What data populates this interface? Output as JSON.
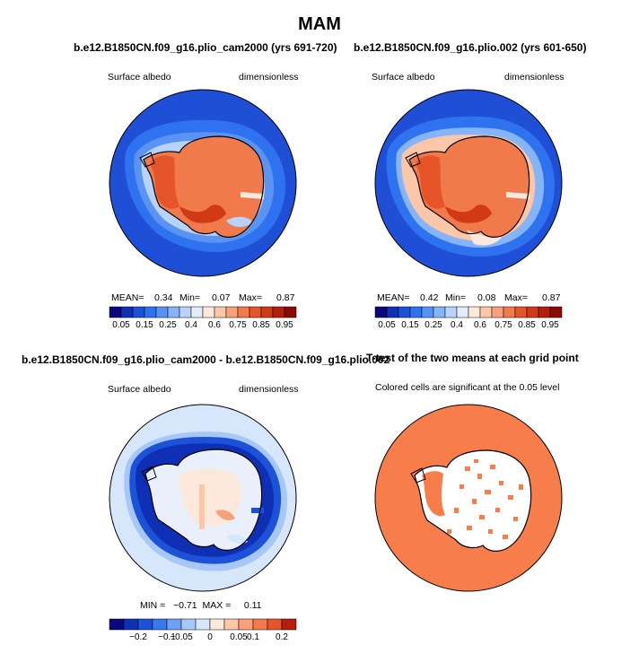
{
  "title": "MAM",
  "panels": [
    {
      "title": "b.e12.B1850CN.f09_g16.plio_cam2000 (yrs 691-720)",
      "left_label": "Surface albedo",
      "right_label": "dimensionless",
      "stats": {
        "mean_label": "MEAN=",
        "mean": "0.34",
        "min_label": "Min=",
        "min": "0.07",
        "max_label": "Max=",
        "max": "0.87"
      },
      "colorbar_labels": [
        "0.05",
        "0.15",
        "0.25",
        "0.4",
        "0.6",
        "0.75",
        "0.85",
        "0.95"
      ]
    },
    {
      "title": "b.e12.B1850CN.f09_g16.plio.002 (yrs 601-650)",
      "left_label": "Surface albedo",
      "right_label": "dimensionless",
      "stats": {
        "mean_label": "MEAN=",
        "mean": "0.42",
        "min_label": "Min=",
        "min": "0.08",
        "max_label": "Max=",
        "max": "0.87"
      },
      "colorbar_labels": [
        "0.05",
        "0.15",
        "0.25",
        "0.4",
        "0.6",
        "0.75",
        "0.85",
        "0.95"
      ]
    },
    {
      "title": "b.e12.B1850CN.f09_g16.plio_cam2000 - b.e12.B1850CN.f09_g16.plio.002",
      "left_label": "Surface albedo",
      "right_label": "dimensionless",
      "stats_text": "MIN =   −0.71  MAX =     0.11",
      "colorbar_labels": [
        "−0.2",
        "−0.1",
        "−0.05",
        "0",
        "0.05",
        "0.1",
        "0.2"
      ]
    },
    {
      "title": "T-test of the two means at each grid point",
      "subtitle": "Colored cells are significant at the 0.05 level"
    }
  ],
  "colors": {
    "albedo_scale": [
      "#08087a",
      "#0f2fb4",
      "#1c52d8",
      "#2f72f0",
      "#5693f5",
      "#86b4f8",
      "#b7d3fb",
      "#e2ecfb",
      "#fde8dc",
      "#fbc7a8",
      "#f7a07a",
      "#f07a4c",
      "#e6552a",
      "#d23a17",
      "#b41e0c",
      "#8a0b04"
    ],
    "diff_scale": [
      "#08087a",
      "#0f2fb4",
      "#1c52d8",
      "#3a78ef",
      "#6f9ff5",
      "#a8c7f9",
      "#d6e6fb",
      "#fde8dc",
      "#fbc7a8",
      "#f7a07a",
      "#f07a4c",
      "#e6552a",
      "#b41e0c"
    ],
    "ttest_fill": "#f77e4a"
  }
}
